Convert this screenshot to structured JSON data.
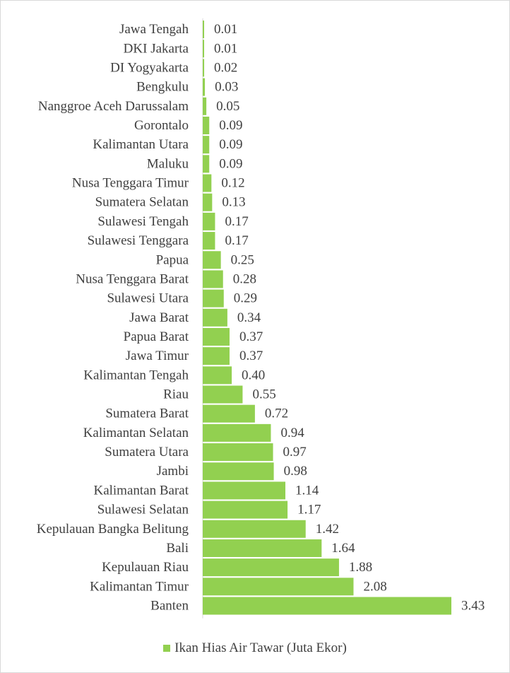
{
  "chart_data": {
    "type": "bar",
    "orientation": "horizontal",
    "categories": [
      "Jawa Tengah",
      "DKI Jakarta",
      "DI Yogyakarta",
      "Bengkulu",
      "Nanggroe Aceh Darussalam",
      "Gorontalo",
      "Kalimantan Utara",
      "Maluku",
      "Nusa Tenggara Timur",
      "Sumatera Selatan",
      "Sulawesi Tengah",
      "Sulawesi Tenggara",
      "Papua",
      "Nusa Tenggara Barat",
      "Sulawesi Utara",
      "Jawa Barat",
      "Papua Barat",
      "Jawa Timur",
      "Kalimantan Tengah",
      "Riau",
      "Sumatera Barat",
      "Kalimantan Selatan",
      "Sumatera Utara",
      "Jambi",
      "Kalimantan Barat",
      "Sulawesi Selatan",
      "Kepulauan Bangka Belitung",
      "Bali",
      "Kepulauan Riau",
      "Kalimantan Timur",
      "Banten"
    ],
    "values": [
      0.01,
      0.01,
      0.02,
      0.03,
      0.05,
      0.09,
      0.09,
      0.09,
      0.12,
      0.13,
      0.17,
      0.17,
      0.25,
      0.28,
      0.29,
      0.34,
      0.37,
      0.37,
      0.4,
      0.55,
      0.72,
      0.94,
      0.97,
      0.98,
      1.14,
      1.17,
      1.42,
      1.64,
      1.88,
      2.08,
      3.43
    ],
    "data_labels": [
      "0.01",
      "0.01",
      "0.02",
      "0.03",
      "0.05",
      "0.09",
      "0.09",
      "0.09",
      "0.12",
      "0.13",
      "0.17",
      "0.17",
      "0.25",
      "0.28",
      "0.29",
      "0.34",
      "0.37",
      "0.37",
      "0.40",
      "0.55",
      "0.72",
      "0.94",
      "0.97",
      "0.98",
      "1.14",
      "1.17",
      "1.42",
      "1.64",
      "1.88",
      "2.08",
      "3.43"
    ],
    "series": [
      {
        "name": "Ikan Hias Air Tawar (Juta Ekor)",
        "color": "#92d050"
      }
    ],
    "xlim": [
      0,
      3.43
    ],
    "grid": false,
    "legend_position": "bottom"
  }
}
